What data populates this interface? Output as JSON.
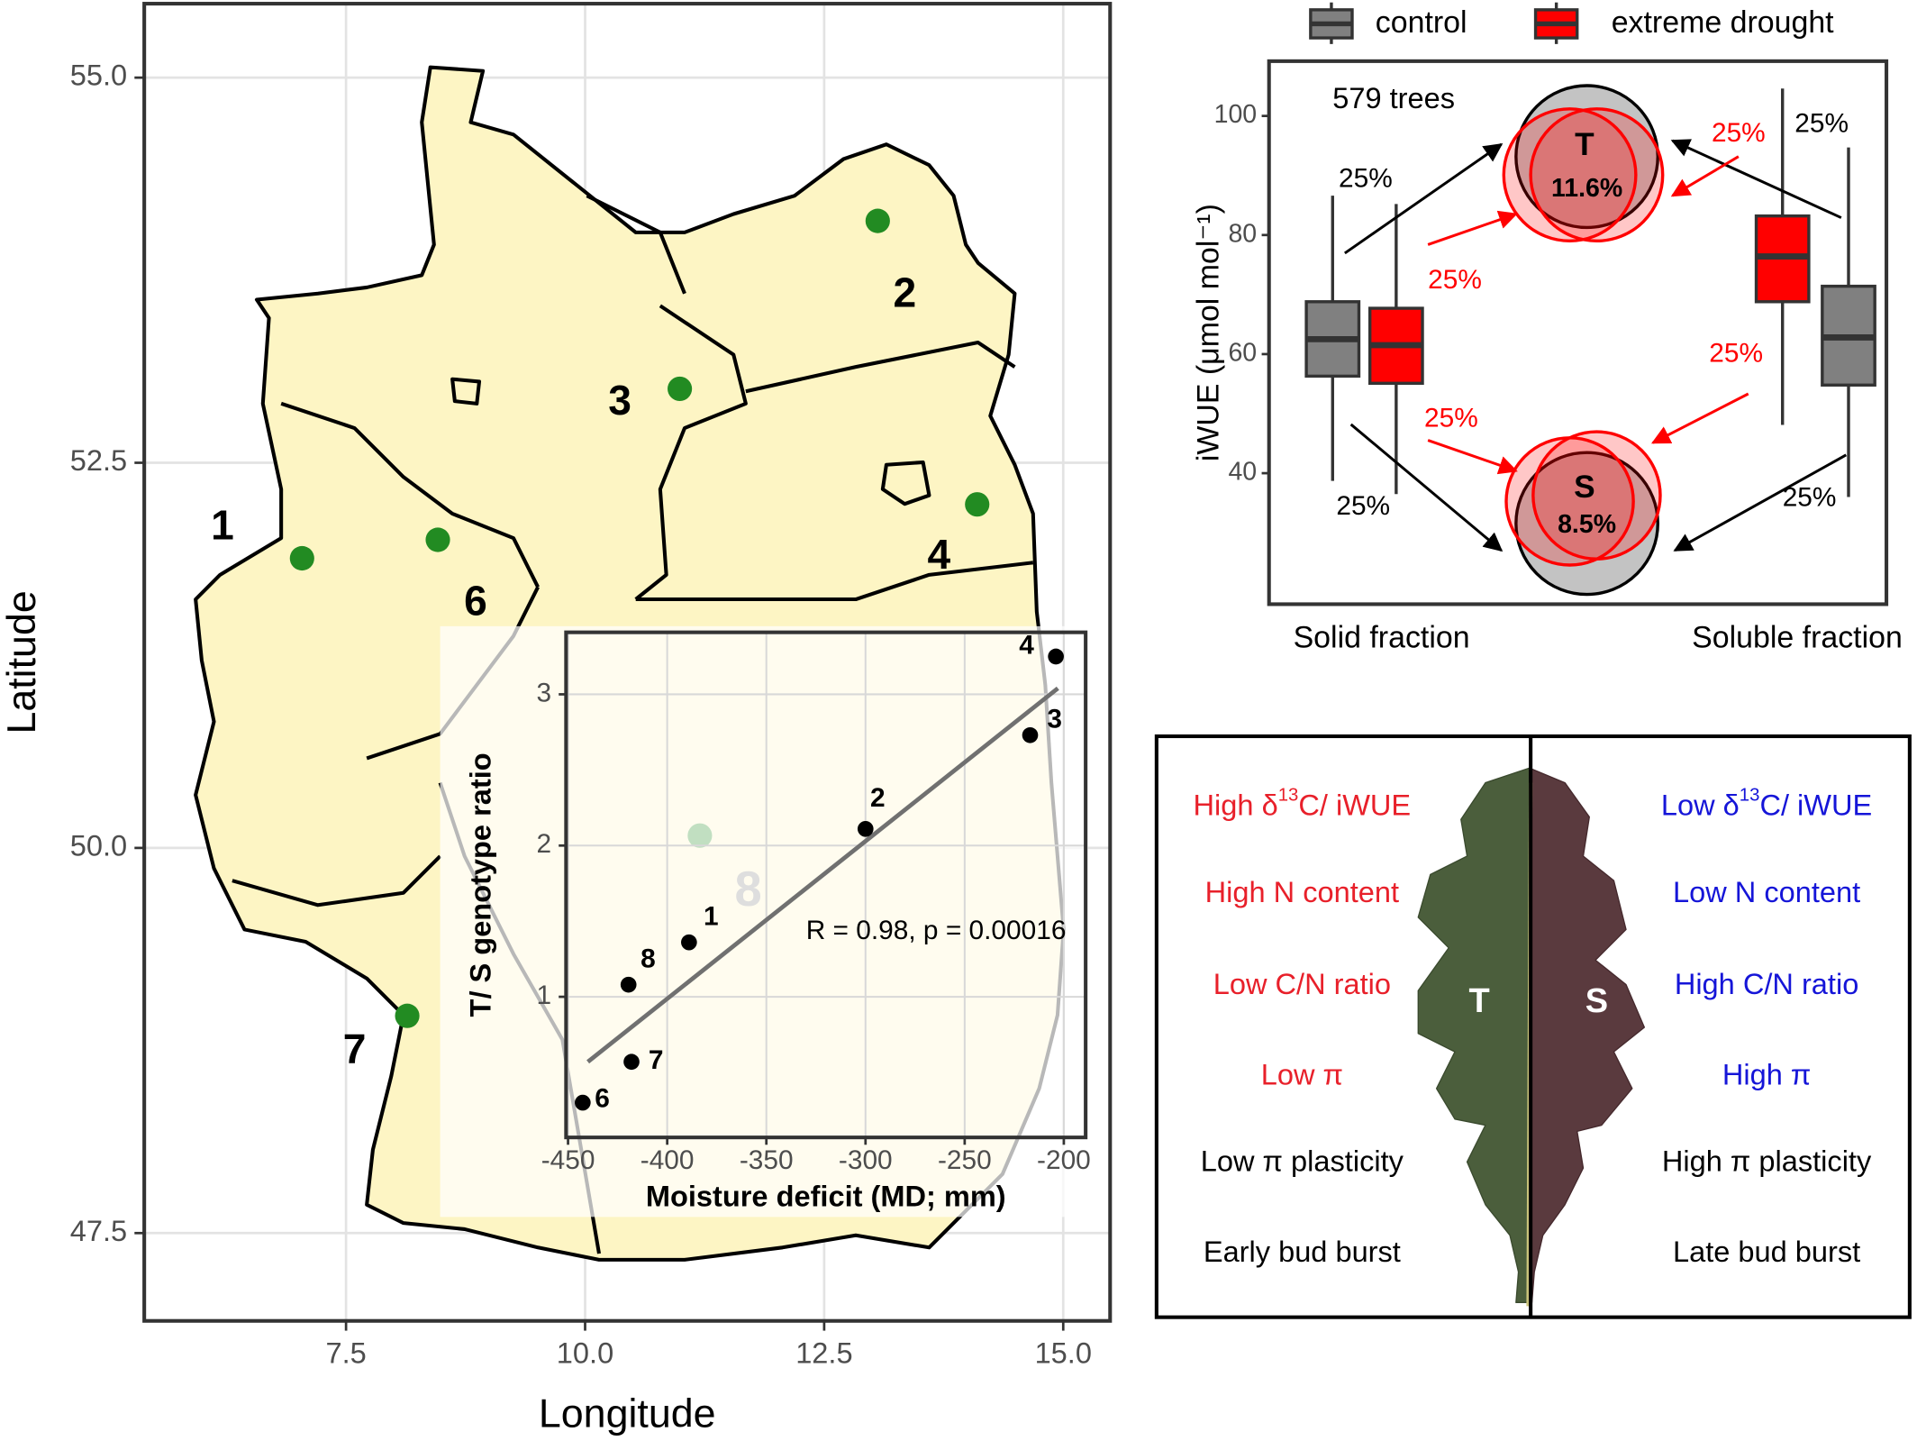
{
  "chart_data": [
    {
      "type": "map",
      "xlabel": "Longitude",
      "ylabel": "Latitude",
      "xlim": [
        5.39,
        15.49
      ],
      "ylim": [
        46.93,
        55.48
      ],
      "xticks": [
        7.5,
        {
          "value": 10,
          "label": "10.0"
        },
        12.5,
        {
          "value": 15,
          "label": "15.0"
        }
      ],
      "yticks": [
        47.5,
        {
          "value": 50,
          "label": "50.0"
        },
        52.5,
        {
          "value": 55,
          "label": "55.0"
        }
      ],
      "grid": true,
      "color": "#228b22",
      "fill": "#fdf5c4",
      "x": [
        7.04,
        8.46,
        10.99,
        13.06,
        14.1,
        8.14,
        11.2
      ],
      "y": [
        51.88,
        52.0,
        52.98,
        54.07,
        52.23,
        48.91,
        50.08
      ],
      "region_labels": [
        "1",
        "2",
        "3",
        "4",
        "6",
        "7",
        "8"
      ]
    },
    {
      "type": "scatter",
      "xlabel": "Moisture deficit (MD; mm)",
      "ylabel": "T/ S genotype ratio",
      "annotation": "R = 0.98, p = 0.00016",
      "xlim": [
        -451,
        -189
      ],
      "ylim": [
        0.07,
        3.41
      ],
      "xticks": [
        -450,
        -400,
        -350,
        -300,
        -250,
        -200
      ],
      "yticks": [
        1,
        2,
        3
      ],
      "grid": true,
      "color": "#000000",
      "x": [
        -442.6,
        -418,
        -419.5,
        -389,
        -300,
        -217,
        -204
      ],
      "y": [
        0.3,
        0.57,
        1.08,
        1.36,
        2.11,
        2.73,
        3.25
      ],
      "labels": [
        "6",
        "7",
        "8",
        "1",
        "2",
        "3",
        "4"
      ],
      "fit": {
        "x": [
          -440,
          -203
        ],
        "y": [
          0.57,
          3.04
        ],
        "color": "#707070"
      }
    },
    {
      "type": "box",
      "ylabel": "iWUE (μmol mol⁻¹)",
      "categories": [
        "Solid fraction",
        "Soluble fraction"
      ],
      "ylim": [
        18,
        109.2
      ],
      "yticks": [
        40,
        60,
        80,
        100
      ],
      "series": [
        {
          "name": "control",
          "color": "#808080",
          "low": [
            38.7,
            36.0
          ],
          "q1": [
            56.3,
            54.8
          ],
          "median": [
            62.5,
            62.8
          ],
          "q3": [
            68.8,
            71.4
          ],
          "high": [
            86.6,
            94.7
          ]
        },
        {
          "name": "extreme drought",
          "color": "#ff0000",
          "low": [
            36.5,
            48.1
          ],
          "q1": [
            55.1,
            68.8
          ],
          "median": [
            61.5,
            76.4
          ],
          "q3": [
            67.7,
            83.2
          ],
          "high": [
            85.2,
            104.6
          ]
        }
      ],
      "annotations": {
        "n": "579 trees",
        "percents": [
          "25%",
          "25%",
          "25%",
          "25%",
          "25%",
          "25%",
          "25%",
          "25%"
        ],
        "groups": [
          {
            "name": "T",
            "value": "11.6%"
          },
          {
            "name": "S",
            "value": "8.5%"
          }
        ]
      }
    }
  ],
  "traits": {
    "left_label": "T",
    "right_label": "S",
    "left": [
      {
        "parts": [
          "High δ",
          "13",
          "C/ iWUE"
        ],
        "color": "#e8202a"
      },
      {
        "parts": [
          "High N content"
        ],
        "color": "#e8202a"
      },
      {
        "parts": [
          "Low C/N ratio"
        ],
        "color": "#e8202a"
      },
      {
        "parts": [
          "Low π"
        ],
        "color": "#e8202a"
      },
      {
        "parts": [
          "Low π plasticity"
        ],
        "color": "#000000"
      },
      {
        "parts": [
          "Early bud burst"
        ],
        "color": "#000000"
      }
    ],
    "right": [
      {
        "parts": [
          "Low δ",
          "13",
          "C/ iWUE"
        ],
        "color": "#1515d8"
      },
      {
        "parts": [
          "Low N content"
        ],
        "color": "#1515d8"
      },
      {
        "parts": [
          "High C/N ratio"
        ],
        "color": "#1515d8"
      },
      {
        "parts": [
          "High π"
        ],
        "color": "#1515d8"
      },
      {
        "parts": [
          "High π plasticity"
        ],
        "color": "#000000"
      },
      {
        "parts": [
          "Late bud burst"
        ],
        "color": "#000000"
      }
    ]
  }
}
